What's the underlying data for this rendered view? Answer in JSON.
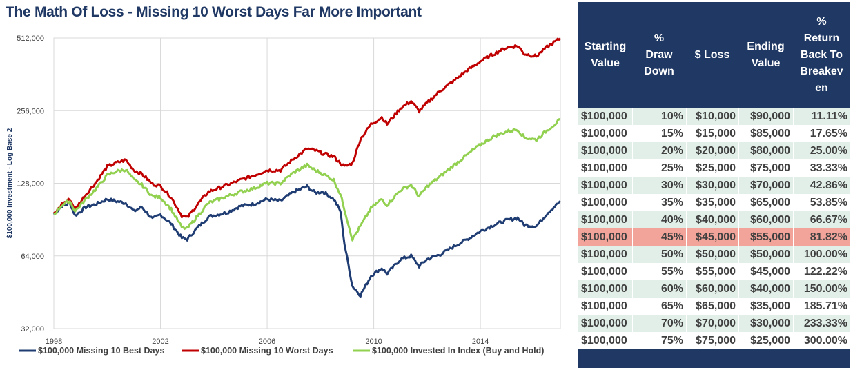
{
  "colors": {
    "best": "#1f3d73",
    "worst": "#c00000",
    "index": "#92d050",
    "header_bg": "#1f3864",
    "row_even": "#e2efe9",
    "row_odd": "#ffffff",
    "row_highlight": "#f2a49a",
    "title": "#1f3864"
  },
  "chart_data": {
    "type": "line",
    "title": "The Math Of Loss - Missing 10 Worst Days Far More Important",
    "xlabel": "",
    "ylabel": "$100,000 Investment - Log Base 2",
    "yscale": "log2",
    "ylim": [
      32000,
      512000
    ],
    "xlim": [
      1998,
      2017.0
    ],
    "y_ticks": [
      32000,
      64000,
      128000,
      256000,
      512000
    ],
    "y_tick_labels": [
      "32,000",
      "64,000",
      "128,000",
      "256,000",
      "512,000"
    ],
    "x_ticks": [
      1998,
      2002,
      2006,
      2010,
      2014
    ],
    "x_tick_labels": [
      "1998",
      "2002",
      "2006",
      "2010",
      "2014"
    ],
    "grid": true,
    "legend_position": "bottom",
    "series": [
      {
        "name": "$100,000 Missing 10 Best Days",
        "key": "best",
        "x": [
          1998.0,
          1998.3,
          1998.6,
          1998.8,
          1999.2,
          1999.6,
          2000.0,
          2000.3,
          2000.7,
          2001.0,
          2001.3,
          2001.7,
          2002.0,
          2002.4,
          2002.8,
          2003.0,
          2003.4,
          2003.8,
          2004.5,
          2005.0,
          2005.5,
          2006.0,
          2006.5,
          2007.0,
          2007.5,
          2007.8,
          2008.1,
          2008.5,
          2008.75,
          2008.9,
          2009.2,
          2009.5,
          2009.9,
          2010.3,
          2010.5,
          2011.0,
          2011.4,
          2011.7,
          2012.0,
          2012.5,
          2013.0,
          2013.5,
          2014.0,
          2014.5,
          2015.0,
          2015.4,
          2015.65,
          2016.1,
          2016.5,
          2017.0
        ],
        "values": [
          95000,
          103000,
          106000,
          94000,
          102000,
          105000,
          110000,
          108000,
          106000,
          98000,
          102000,
          91000,
          95000,
          87000,
          76000,
          75000,
          84000,
          93000,
          97000,
          103000,
          105000,
          110000,
          108000,
          118000,
          124000,
          117000,
          118000,
          110000,
          98000,
          72000,
          48000,
          44000,
          53000,
          57000,
          54000,
          62000,
          64000,
          58000,
          62000,
          65000,
          70000,
          75000,
          81000,
          86000,
          90000,
          92000,
          86000,
          85000,
          96000,
          108000
        ]
      },
      {
        "name": "$100,000 Missing 10 Worst Days",
        "key": "worst",
        "x": [
          1998.0,
          1998.3,
          1998.6,
          1998.8,
          1999.2,
          1999.6,
          2000.0,
          2000.3,
          2000.7,
          2001.0,
          2001.3,
          2001.7,
          2002.0,
          2002.4,
          2002.8,
          2003.0,
          2003.4,
          2003.8,
          2004.5,
          2005.0,
          2005.5,
          2006.0,
          2006.5,
          2007.0,
          2007.5,
          2007.8,
          2008.1,
          2008.5,
          2008.75,
          2008.9,
          2009.2,
          2009.5,
          2009.9,
          2010.3,
          2010.5,
          2011.0,
          2011.4,
          2011.7,
          2012.0,
          2012.5,
          2013.0,
          2013.5,
          2014.0,
          2014.5,
          2015.0,
          2015.4,
          2015.65,
          2016.1,
          2016.5,
          2017.0
        ],
        "values": [
          95000,
          105000,
          110000,
          100000,
          115000,
          130000,
          150000,
          155000,
          160000,
          145000,
          140000,
          127000,
          125000,
          112000,
          94000,
          92000,
          105000,
          118000,
          126000,
          132000,
          138000,
          145000,
          145000,
          162000,
          178000,
          175000,
          170000,
          165000,
          155000,
          150000,
          155000,
          195000,
          225000,
          240000,
          225000,
          262000,
          280000,
          255000,
          275000,
          310000,
          340000,
          375000,
          410000,
          440000,
          468000,
          475000,
          440000,
          430000,
          470000,
          510000
        ]
      },
      {
        "name": "$100,000 Invested In Index (Buy and Hold)",
        "key": "index",
        "x": [
          1998.0,
          1998.3,
          1998.6,
          1998.8,
          1999.2,
          1999.6,
          2000.0,
          2000.3,
          2000.7,
          2001.0,
          2001.3,
          2001.7,
          2002.0,
          2002.4,
          2002.8,
          2003.0,
          2003.4,
          2003.8,
          2004.5,
          2005.0,
          2005.5,
          2006.0,
          2006.5,
          2007.0,
          2007.5,
          2007.8,
          2008.1,
          2008.5,
          2008.75,
          2008.9,
          2009.2,
          2009.5,
          2009.9,
          2010.3,
          2010.5,
          2011.0,
          2011.4,
          2011.7,
          2012.0,
          2012.5,
          2013.0,
          2013.5,
          2014.0,
          2014.5,
          2015.0,
          2015.4,
          2015.65,
          2016.1,
          2016.5,
          2017.0
        ],
        "values": [
          95000,
          104000,
          108000,
          98000,
          110000,
          122000,
          138000,
          143000,
          146000,
          132000,
          126000,
          113000,
          112000,
          100000,
          84000,
          83000,
          94000,
          106000,
          113000,
          118000,
          122000,
          128000,
          128000,
          142000,
          152000,
          145000,
          140000,
          132000,
          115000,
          100000,
          75000,
          85000,
          101000,
          110000,
          104000,
          120000,
          126000,
          113000,
          124000,
          137000,
          152000,
          168000,
          185000,
          200000,
          210000,
          214000,
          198000,
          194000,
          212000,
          235000
        ]
      }
    ]
  },
  "table": {
    "headers": [
      "Starting\nValue",
      "%\nDraw\nDown",
      "$ Loss",
      "Ending\nValue",
      "%\nReturn\nBack To\nBreakev\nen"
    ],
    "highlight_row": 7,
    "rows": [
      [
        "$100,000",
        "10%",
        "$10,000",
        "$90,000",
        "11.11%"
      ],
      [
        "$100,000",
        "15%",
        "$15,000",
        "$85,000",
        "17.65%"
      ],
      [
        "$100,000",
        "20%",
        "$20,000",
        "$80,000",
        "25.00%"
      ],
      [
        "$100,000",
        "25%",
        "$25,000",
        "$75,000",
        "33.33%"
      ],
      [
        "$100,000",
        "30%",
        "$30,000",
        "$70,000",
        "42.86%"
      ],
      [
        "$100,000",
        "35%",
        "$35,000",
        "$65,000",
        "53.85%"
      ],
      [
        "$100,000",
        "40%",
        "$40,000",
        "$60,000",
        "66.67%"
      ],
      [
        "$100,000",
        "45%",
        "$45,000",
        "$55,000",
        "81.82%"
      ],
      [
        "$100,000",
        "50%",
        "$50,000",
        "$50,000",
        "100.00%"
      ],
      [
        "$100,000",
        "55%",
        "$55,000",
        "$45,000",
        "122.22%"
      ],
      [
        "$100,000",
        "60%",
        "$60,000",
        "$40,000",
        "150.00%"
      ],
      [
        "$100,000",
        "65%",
        "$65,000",
        "$35,000",
        "185.71%"
      ],
      [
        "$100,000",
        "70%",
        "$70,000",
        "$30,000",
        "233.33%"
      ],
      [
        "$100,000",
        "75%",
        "$75,000",
        "$25,000",
        "300.00%"
      ]
    ]
  }
}
